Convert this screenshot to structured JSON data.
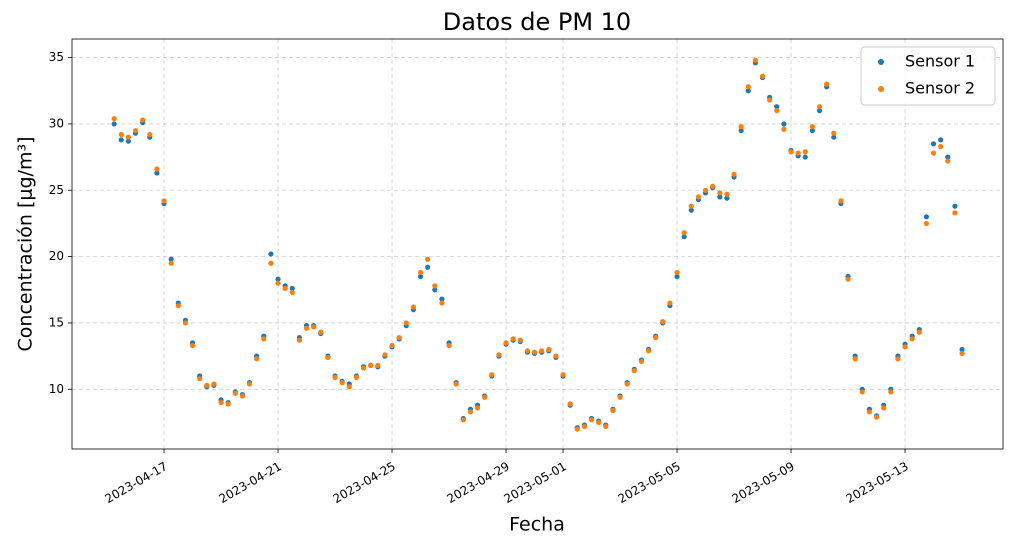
{
  "chart_data": {
    "type": "scatter",
    "title": "Datos de PM 10",
    "x_label": "Fecha",
    "y_label": "Concentración [μg/m³]",
    "x": [
      "2023-04-15T06:00",
      "2023-04-15T12:00",
      "2023-04-15T18:00",
      "2023-04-16T00:00",
      "2023-04-16T06:00",
      "2023-04-16T12:00",
      "2023-04-16T18:00",
      "2023-04-17T00:00",
      "2023-04-17T06:00",
      "2023-04-17T12:00",
      "2023-04-17T18:00",
      "2023-04-18T00:00",
      "2023-04-18T06:00",
      "2023-04-18T12:00",
      "2023-04-18T18:00",
      "2023-04-19T00:00",
      "2023-04-19T06:00",
      "2023-04-19T12:00",
      "2023-04-19T18:00",
      "2023-04-20T00:00",
      "2023-04-20T06:00",
      "2023-04-20T12:00",
      "2023-04-20T18:00",
      "2023-04-21T00:00",
      "2023-04-21T06:00",
      "2023-04-21T12:00",
      "2023-04-21T18:00",
      "2023-04-22T00:00",
      "2023-04-22T06:00",
      "2023-04-22T12:00",
      "2023-04-22T18:00",
      "2023-04-23T00:00",
      "2023-04-23T06:00",
      "2023-04-23T12:00",
      "2023-04-23T18:00",
      "2023-04-24T00:00",
      "2023-04-24T06:00",
      "2023-04-24T12:00",
      "2023-04-24T18:00",
      "2023-04-25T00:00",
      "2023-04-25T06:00",
      "2023-04-25T12:00",
      "2023-04-25T18:00",
      "2023-04-26T00:00",
      "2023-04-26T06:00",
      "2023-04-26T12:00",
      "2023-04-26T18:00",
      "2023-04-27T00:00",
      "2023-04-27T06:00",
      "2023-04-27T12:00",
      "2023-04-27T18:00",
      "2023-04-28T00:00",
      "2023-04-28T06:00",
      "2023-04-28T12:00",
      "2023-04-28T18:00",
      "2023-04-29T00:00",
      "2023-04-29T06:00",
      "2023-04-29T12:00",
      "2023-04-29T18:00",
      "2023-04-30T00:00",
      "2023-04-30T06:00",
      "2023-04-30T12:00",
      "2023-04-30T18:00",
      "2023-05-01T00:00",
      "2023-05-01T06:00",
      "2023-05-01T12:00",
      "2023-05-01T18:00",
      "2023-05-02T00:00",
      "2023-05-02T06:00",
      "2023-05-02T12:00",
      "2023-05-02T18:00",
      "2023-05-03T00:00",
      "2023-05-03T06:00",
      "2023-05-03T12:00",
      "2023-05-03T18:00",
      "2023-05-04T00:00",
      "2023-05-04T06:00",
      "2023-05-04T12:00",
      "2023-05-04T18:00",
      "2023-05-05T00:00",
      "2023-05-05T06:00",
      "2023-05-05T12:00",
      "2023-05-05T18:00",
      "2023-05-06T00:00",
      "2023-05-06T06:00",
      "2023-05-06T12:00",
      "2023-05-06T18:00",
      "2023-05-07T00:00",
      "2023-05-07T06:00",
      "2023-05-07T12:00",
      "2023-05-07T18:00",
      "2023-05-08T00:00",
      "2023-05-08T06:00",
      "2023-05-08T12:00",
      "2023-05-08T18:00",
      "2023-05-09T00:00",
      "2023-05-09T06:00",
      "2023-05-09T12:00",
      "2023-05-09T18:00",
      "2023-05-10T00:00",
      "2023-05-10T06:00",
      "2023-05-10T12:00",
      "2023-05-10T18:00",
      "2023-05-11T00:00",
      "2023-05-11T06:00",
      "2023-05-11T12:00",
      "2023-05-11T18:00",
      "2023-05-12T00:00",
      "2023-05-12T06:00",
      "2023-05-12T12:00",
      "2023-05-12T18:00",
      "2023-05-13T00:00",
      "2023-05-13T06:00",
      "2023-05-13T12:00",
      "2023-05-13T18:00",
      "2023-05-14T00:00",
      "2023-05-14T06:00",
      "2023-05-14T12:00",
      "2023-05-14T18:00",
      "2023-05-15T00:00"
    ],
    "series": [
      {
        "name": "Sensor 1",
        "color": "#1f77b4",
        "values": [
          30.0,
          28.8,
          28.7,
          29.3,
          30.1,
          29.0,
          26.3,
          24.0,
          19.8,
          16.5,
          15.2,
          13.5,
          11.0,
          10.2,
          10.3,
          9.2,
          9.0,
          9.8,
          9.6,
          10.5,
          12.5,
          14.0,
          20.2,
          18.3,
          17.8,
          17.6,
          13.9,
          14.8,
          14.8,
          14.2,
          12.5,
          11.0,
          10.6,
          10.4,
          11.0,
          11.7,
          11.8,
          11.7,
          12.5,
          13.2,
          13.8,
          14.8,
          16.0,
          18.5,
          19.2,
          17.5,
          16.8,
          13.5,
          10.5,
          7.8,
          8.5,
          8.8,
          9.5,
          11.0,
          12.5,
          13.4,
          13.7,
          13.6,
          12.8,
          12.7,
          12.8,
          12.9,
          12.4,
          11.0,
          8.8,
          7.1,
          7.3,
          7.8,
          7.6,
          7.3,
          8.5,
          9.5,
          10.5,
          11.5,
          12.2,
          13.0,
          14.0,
          15.0,
          16.3,
          18.5,
          21.5,
          23.5,
          24.3,
          24.8,
          25.2,
          24.5,
          24.4,
          26.0,
          29.5,
          32.5,
          34.6,
          33.5,
          32.0,
          31.3,
          30.0,
          28.0,
          27.6,
          27.5,
          29.5,
          31.0,
          32.8,
          29.0,
          24.0,
          18.5,
          12.5,
          10.0,
          8.5,
          8.0,
          8.8,
          10.0,
          12.5,
          13.4,
          14.0,
          14.5,
          23.0,
          28.5,
          28.8,
          27.5,
          23.8,
          13.0
        ]
      },
      {
        "name": "Sensor 2",
        "color": "#ff7f0e",
        "values": [
          30.4,
          29.2,
          29.0,
          29.5,
          30.3,
          29.2,
          26.6,
          24.2,
          19.5,
          16.3,
          15.0,
          13.3,
          10.8,
          10.3,
          10.4,
          9.0,
          8.9,
          9.7,
          9.5,
          10.4,
          12.3,
          13.8,
          19.5,
          18.0,
          17.6,
          17.3,
          13.7,
          14.6,
          14.7,
          14.3,
          12.4,
          10.9,
          10.5,
          10.2,
          10.9,
          11.6,
          11.8,
          11.8,
          12.6,
          13.3,
          13.9,
          15.0,
          16.2,
          18.8,
          19.8,
          17.8,
          16.5,
          13.3,
          10.4,
          7.7,
          8.3,
          8.6,
          9.4,
          11.1,
          12.6,
          13.5,
          13.8,
          13.7,
          12.9,
          12.8,
          12.9,
          13.0,
          12.5,
          11.1,
          8.9,
          7.0,
          7.2,
          7.7,
          7.5,
          7.2,
          8.4,
          9.4,
          10.4,
          11.4,
          12.1,
          12.9,
          13.9,
          15.1,
          16.5,
          18.8,
          21.8,
          23.8,
          24.5,
          25.0,
          25.3,
          24.8,
          24.7,
          26.2,
          29.8,
          32.8,
          34.8,
          33.6,
          31.8,
          31.0,
          29.6,
          27.9,
          27.8,
          27.9,
          29.8,
          31.3,
          33.0,
          29.3,
          24.2,
          18.3,
          12.3,
          9.8,
          8.3,
          7.9,
          8.6,
          9.8,
          12.3,
          13.2,
          13.8,
          14.3,
          22.5,
          27.8,
          28.3,
          27.2,
          23.3,
          12.7
        ]
      }
    ],
    "xlim": [
      "2023-04-13T18:30",
      "2023-05-16T10:30"
    ],
    "xticks": [
      "2023-04-17",
      "2023-04-21",
      "2023-04-25",
      "2023-04-29",
      "2023-05-01",
      "2023-05-05",
      "2023-05-09",
      "2023-05-13"
    ],
    "ylim": [
      5.5,
      36.4
    ],
    "yticks": [
      10,
      15,
      20,
      25,
      30,
      35
    ],
    "grid": true,
    "legend": "upper right"
  }
}
